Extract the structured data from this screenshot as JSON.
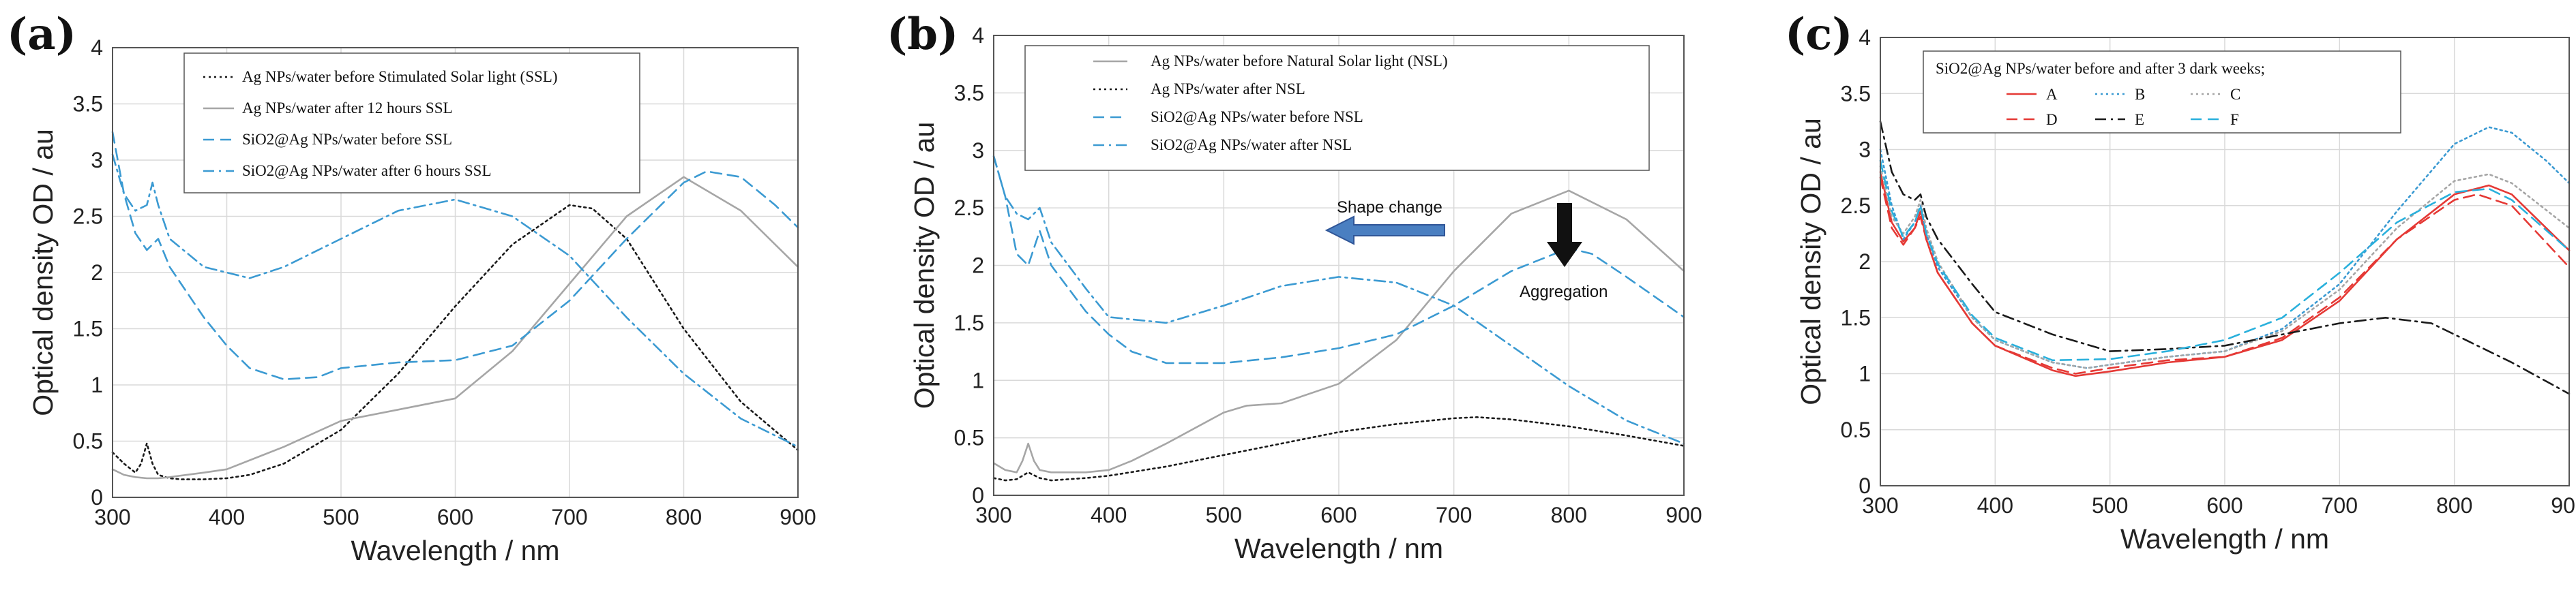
{
  "colors": {
    "black": "#1a1a1a",
    "gray": "#a6a6a6",
    "blue": "#3b9ad2",
    "red": "#e53935",
    "darkblue": "#1f4e79",
    "lightblue": "#29b0dc",
    "arrow_fill": "#4a7fc1",
    "arrow_stroke": "#2f5597"
  },
  "chart_data": [
    {
      "panel": "(a)",
      "type": "line",
      "xlabel": "Wavelength / nm",
      "ylabel": "Optical density OD / au",
      "xlim": [
        300,
        900
      ],
      "ylim": [
        0,
        4
      ],
      "xticks": [
        "300",
        "400",
        "500",
        "600",
        "700",
        "800",
        "900"
      ],
      "yticks": [
        "0",
        "0.5",
        "1",
        "1.5",
        "2",
        "2.5",
        "3",
        "3.5",
        "4"
      ],
      "grid": true,
      "legend_position": "top-center",
      "series": [
        {
          "name": "Ag NPs/water before Stimulated Solar light (SSL)",
          "color": "black",
          "dash": "dot",
          "x": [
            300,
            310,
            320,
            325,
            330,
            335,
            340,
            350,
            360,
            380,
            400,
            420,
            450,
            500,
            550,
            600,
            650,
            700,
            720,
            750,
            800,
            850,
            900
          ],
          "y": [
            0.4,
            0.3,
            0.22,
            0.3,
            0.48,
            0.3,
            0.2,
            0.17,
            0.16,
            0.16,
            0.17,
            0.2,
            0.3,
            0.6,
            1.1,
            1.7,
            2.25,
            2.6,
            2.57,
            2.3,
            1.5,
            0.85,
            0.42
          ]
        },
        {
          "name": "Ag NPs/water after 12 hours SSL",
          "color": "gray",
          "dash": "solid",
          "x": [
            300,
            310,
            320,
            330,
            340,
            350,
            380,
            400,
            450,
            500,
            550,
            600,
            650,
            700,
            750,
            800,
            850,
            900
          ],
          "y": [
            0.25,
            0.2,
            0.18,
            0.17,
            0.17,
            0.18,
            0.22,
            0.25,
            0.45,
            0.68,
            0.78,
            0.88,
            1.3,
            1.9,
            2.5,
            2.85,
            2.55,
            2.05
          ]
        },
        {
          "name": "SiO2@Ag NPs/water before SSL",
          "color": "blue",
          "dash": "dash",
          "x": [
            300,
            310,
            320,
            330,
            340,
            350,
            380,
            400,
            420,
            450,
            480,
            500,
            550,
            600,
            650,
            700,
            750,
            800,
            820,
            850,
            880,
            900
          ],
          "y": [
            3.25,
            2.7,
            2.35,
            2.2,
            2.3,
            2.05,
            1.6,
            1.35,
            1.15,
            1.05,
            1.07,
            1.15,
            1.2,
            1.22,
            1.35,
            1.75,
            2.3,
            2.8,
            2.9,
            2.85,
            2.6,
            2.4
          ]
        },
        {
          "name": "SiO2@Ag NPs/water after 6 hours SSL",
          "color": "blue",
          "dash": "dashdot",
          "x": [
            300,
            310,
            320,
            330,
            335,
            340,
            350,
            380,
            400,
            420,
            450,
            500,
            550,
            600,
            650,
            700,
            750,
            800,
            850,
            900
          ],
          "y": [
            3.05,
            2.7,
            2.55,
            2.6,
            2.8,
            2.6,
            2.3,
            2.05,
            2.0,
            1.95,
            2.05,
            2.3,
            2.55,
            2.65,
            2.5,
            2.15,
            1.6,
            1.1,
            0.7,
            0.45
          ]
        }
      ]
    },
    {
      "panel": "(b)",
      "type": "line",
      "xlabel": "Wavelength / nm",
      "ylabel": "Optical density OD / au",
      "xlim": [
        300,
        900
      ],
      "ylim": [
        0,
        4
      ],
      "xticks": [
        "300",
        "400",
        "500",
        "600",
        "700",
        "800",
        "900"
      ],
      "yticks": [
        "0",
        "0.5",
        "1",
        "1.5",
        "2",
        "2.5",
        "3",
        "3.5",
        "4"
      ],
      "grid": true,
      "legend_position": "top-center",
      "annotations": [
        "Shape change",
        "Aggregation"
      ],
      "series": [
        {
          "name": "Ag NPs/water before Natural Solar light (NSL)",
          "color": "gray",
          "dash": "solid",
          "x": [
            300,
            310,
            320,
            325,
            330,
            335,
            340,
            350,
            380,
            400,
            420,
            450,
            500,
            520,
            550,
            600,
            650,
            700,
            750,
            800,
            850,
            900
          ],
          "y": [
            0.28,
            0.22,
            0.2,
            0.3,
            0.45,
            0.3,
            0.22,
            0.2,
            0.2,
            0.22,
            0.3,
            0.45,
            0.72,
            0.78,
            0.8,
            0.97,
            1.35,
            1.95,
            2.45,
            2.65,
            2.4,
            1.95
          ]
        },
        {
          "name": "Ag NPs/water after NSL",
          "color": "black",
          "dash": "dot",
          "x": [
            300,
            310,
            320,
            330,
            340,
            350,
            380,
            400,
            450,
            500,
            550,
            600,
            650,
            700,
            720,
            750,
            800,
            850,
            900
          ],
          "y": [
            0.15,
            0.13,
            0.14,
            0.2,
            0.15,
            0.13,
            0.15,
            0.17,
            0.25,
            0.35,
            0.45,
            0.55,
            0.62,
            0.67,
            0.68,
            0.66,
            0.6,
            0.52,
            0.43
          ]
        },
        {
          "name": "SiO2@Ag NPs/water before NSL",
          "color": "blue",
          "dash": "dash",
          "x": [
            300,
            310,
            320,
            330,
            340,
            350,
            380,
            400,
            420,
            450,
            500,
            550,
            600,
            650,
            700,
            750,
            800,
            820,
            850,
            900
          ],
          "y": [
            2.95,
            2.6,
            2.1,
            2.0,
            2.3,
            2.0,
            1.6,
            1.4,
            1.25,
            1.15,
            1.15,
            1.2,
            1.28,
            1.4,
            1.65,
            1.95,
            2.15,
            2.1,
            1.9,
            1.55
          ]
        },
        {
          "name": "SiO2@Ag NPs/water after NSL",
          "color": "blue",
          "dash": "dashdot",
          "x": [
            300,
            310,
            320,
            330,
            340,
            350,
            380,
            400,
            450,
            500,
            550,
            600,
            650,
            700,
            750,
            800,
            850,
            900
          ],
          "y": [
            2.95,
            2.6,
            2.45,
            2.4,
            2.5,
            2.2,
            1.8,
            1.55,
            1.5,
            1.65,
            1.82,
            1.9,
            1.85,
            1.65,
            1.3,
            0.95,
            0.65,
            0.45
          ]
        }
      ]
    },
    {
      "panel": "(c)",
      "type": "line",
      "xlabel": "Wavelength / nm",
      "ylabel": "Optical density OD / au",
      "xlim": [
        300,
        900
      ],
      "ylim": [
        0,
        4
      ],
      "xticks": [
        "300",
        "400",
        "500",
        "600",
        "700",
        "800",
        "900"
      ],
      "yticks": [
        "0",
        "0.5",
        "1",
        "1.5",
        "2",
        "2.5",
        "3",
        "3.5",
        "4"
      ],
      "grid": true,
      "legend_title": "SiO2@Ag NPs/water before and after 3 dark weeks;",
      "legend_position": "top-left",
      "series": [
        {
          "name": "A",
          "color": "red",
          "dash": "solid",
          "x": [
            300,
            310,
            320,
            330,
            335,
            340,
            350,
            380,
            400,
            450,
            470,
            500,
            550,
            600,
            650,
            700,
            750,
            800,
            830,
            850,
            900
          ],
          "y": [
            2.8,
            2.35,
            2.18,
            2.3,
            2.45,
            2.2,
            1.9,
            1.45,
            1.25,
            1.03,
            0.98,
            1.02,
            1.1,
            1.15,
            1.3,
            1.65,
            2.2,
            2.6,
            2.68,
            2.6,
            2.1
          ]
        },
        {
          "name": "B",
          "color": "blue",
          "dash": "dot",
          "x": [
            300,
            310,
            320,
            330,
            335,
            340,
            350,
            380,
            400,
            450,
            480,
            500,
            550,
            600,
            650,
            700,
            750,
            800,
            830,
            850,
            880,
            900
          ],
          "y": [
            3.0,
            2.5,
            2.2,
            2.35,
            2.5,
            2.25,
            1.95,
            1.5,
            1.3,
            1.1,
            1.05,
            1.08,
            1.15,
            1.2,
            1.4,
            1.8,
            2.45,
            3.05,
            3.2,
            3.15,
            2.9,
            2.7
          ]
        },
        {
          "name": "C",
          "color": "gray",
          "dash": "dot",
          "x": [
            300,
            310,
            320,
            330,
            335,
            340,
            350,
            380,
            400,
            450,
            480,
            500,
            550,
            600,
            650,
            700,
            750,
            800,
            830,
            850,
            900
          ],
          "y": [
            2.85,
            2.4,
            2.25,
            2.4,
            2.55,
            2.3,
            2.0,
            1.5,
            1.3,
            1.1,
            1.05,
            1.08,
            1.15,
            1.2,
            1.38,
            1.75,
            2.3,
            2.72,
            2.78,
            2.7,
            2.3
          ]
        },
        {
          "name": "D",
          "color": "red",
          "dash": "dash",
          "x": [
            300,
            310,
            320,
            330,
            335,
            340,
            350,
            380,
            400,
            450,
            470,
            500,
            550,
            600,
            650,
            700,
            750,
            800,
            820,
            850,
            900
          ],
          "y": [
            2.75,
            2.3,
            2.15,
            2.3,
            2.4,
            2.2,
            1.9,
            1.45,
            1.25,
            1.05,
            1.0,
            1.05,
            1.12,
            1.15,
            1.32,
            1.68,
            2.2,
            2.55,
            2.6,
            2.5,
            1.95
          ]
        },
        {
          "name": "E",
          "color": "black",
          "dash": "dashdot",
          "x": [
            300,
            310,
            320,
            330,
            335,
            340,
            350,
            380,
            400,
            450,
            500,
            550,
            600,
            650,
            700,
            740,
            780,
            800,
            850,
            900
          ],
          "y": [
            3.25,
            2.8,
            2.6,
            2.55,
            2.6,
            2.4,
            2.2,
            1.8,
            1.55,
            1.35,
            1.2,
            1.22,
            1.25,
            1.35,
            1.45,
            1.5,
            1.45,
            1.35,
            1.1,
            0.82
          ]
        },
        {
          "name": "F",
          "color": "lightblue",
          "dash": "dash",
          "x": [
            300,
            310,
            320,
            330,
            335,
            340,
            350,
            380,
            400,
            450,
            500,
            550,
            600,
            650,
            700,
            750,
            800,
            830,
            850,
            900
          ],
          "y": [
            2.9,
            2.45,
            2.22,
            2.35,
            2.5,
            2.25,
            1.98,
            1.52,
            1.32,
            1.12,
            1.13,
            1.2,
            1.3,
            1.5,
            1.9,
            2.35,
            2.62,
            2.65,
            2.55,
            2.1
          ]
        }
      ]
    }
  ]
}
